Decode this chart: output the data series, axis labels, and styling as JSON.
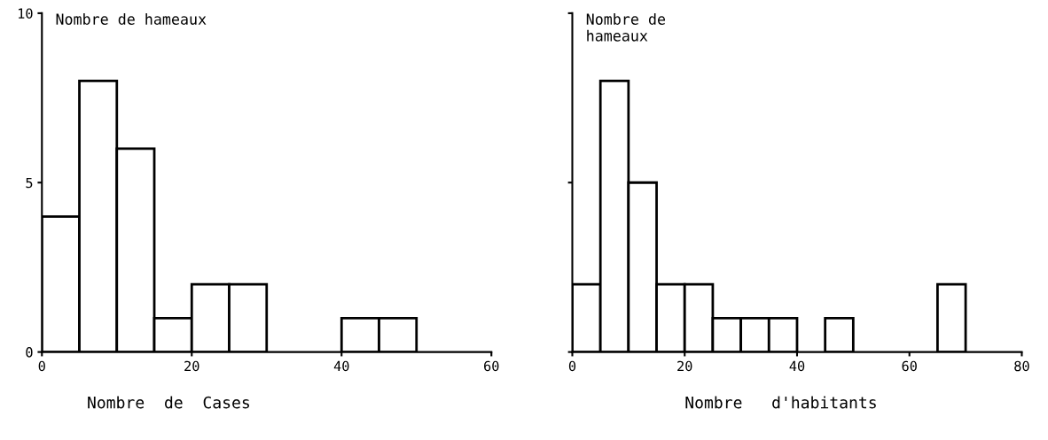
{
  "chart_data": [
    {
      "type": "histogram",
      "xlabel": "Nombre  de  Cases",
      "ylabel": "Nombre de hameaux",
      "bins": [
        0,
        5,
        10,
        15,
        20,
        25,
        30,
        35,
        40,
        45,
        50
      ],
      "values": [
        4,
        8,
        6,
        1,
        2,
        2,
        0,
        0,
        1,
        1
      ],
      "color": "#ffffff",
      "xlim": [
        0,
        60
      ],
      "ylim": [
        0,
        10
      ],
      "xticks": [
        0,
        20,
        40,
        60
      ],
      "yticks": [
        0,
        5,
        10
      ],
      "grid": false
    },
    {
      "type": "histogram",
      "xlabel": "Nombre   d'habitants",
      "ylabel": "Nombre de\nhameaux",
      "bins": [
        0,
        5,
        10,
        15,
        20,
        25,
        30,
        35,
        40,
        45,
        50,
        55,
        60,
        65,
        70
      ],
      "values": [
        2,
        8,
        5,
        2,
        2,
        1,
        1,
        1,
        0,
        1,
        0,
        0,
        0,
        2
      ],
      "color": "#ffffff",
      "xlim": [
        0,
        80
      ],
      "ylim": [
        0,
        10
      ],
      "xticks": [
        0,
        20,
        40,
        60,
        80
      ],
      "yticks": [
        {
          "value": 0,
          "label": null
        },
        {
          "value": 5,
          "label": null
        },
        {
          "value": 10,
          "label": null
        }
      ],
      "tick_labels": "x",
      "grid": false
    }
  ]
}
